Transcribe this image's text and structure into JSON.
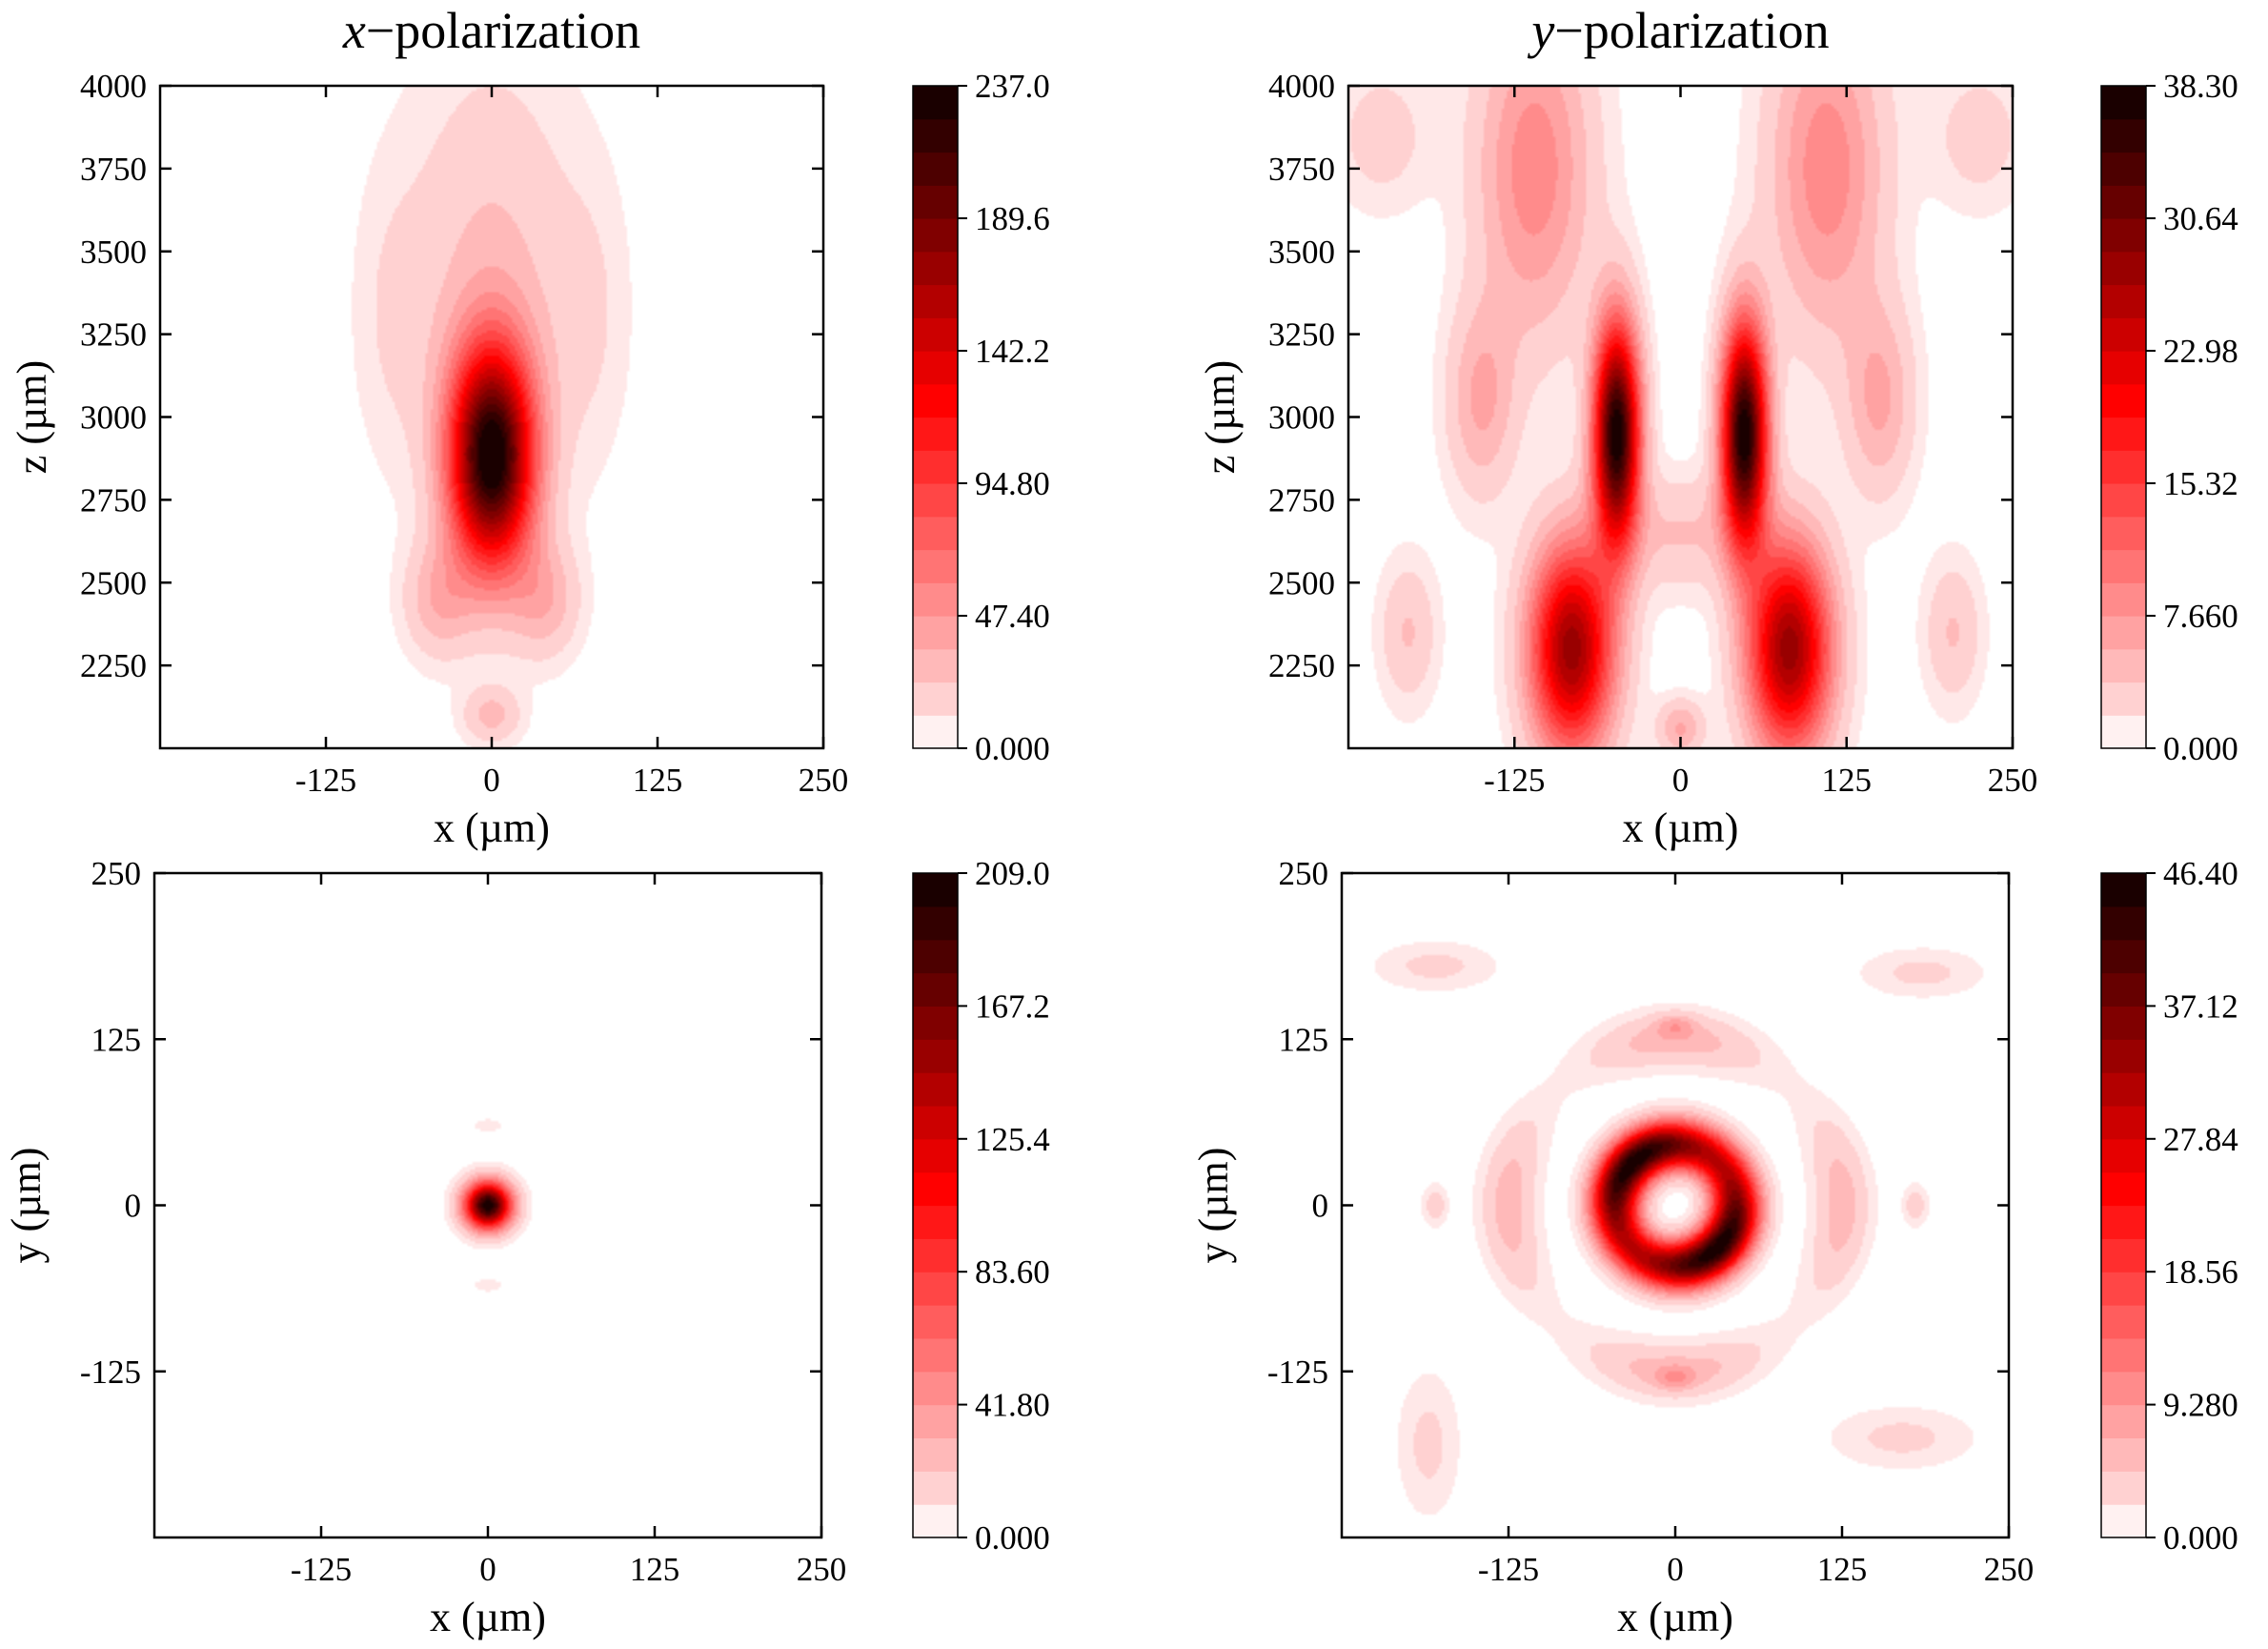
{
  "chart_data": [
    {
      "type": "heatmap",
      "id": "xpol_xz",
      "title_italic": "x",
      "title_rest": "−polarization",
      "xlabel": "x (µm)",
      "ylabel": "z (µm)",
      "xlim": [
        -250,
        250
      ],
      "ylim": [
        2000,
        4000
      ],
      "x_ticks": [
        -125,
        0,
        125,
        250
      ],
      "y_ticks": [
        2250,
        2500,
        2750,
        3000,
        3250,
        3500,
        3750,
        4000
      ],
      "colorbar": {
        "min": 0,
        "max": 237.0,
        "labels": [
          "0.000",
          "47.40",
          "94.80",
          "142.2",
          "189.6",
          "237.0"
        ]
      },
      "field": {
        "shape": "blobs",
        "components": [
          {
            "cx": 0,
            "cy": 2880,
            "sx": 22,
            "sy": 230,
            "amp": 237
          },
          {
            "cx": 0,
            "cy": 3450,
            "sx": 45,
            "sy": 450,
            "amp": 25
          },
          {
            "cx": -40,
            "cy": 2450,
            "sx": 18,
            "sy": 120,
            "amp": 32
          },
          {
            "cx": 40,
            "cy": 2450,
            "sx": 18,
            "sy": 120,
            "amp": 32
          },
          {
            "cx": 0,
            "cy": 2100,
            "sx": 15,
            "sy": 60,
            "amp": 28
          },
          {
            "cx": -75,
            "cy": 3300,
            "sx": 20,
            "sy": 300,
            "amp": 10
          },
          {
            "cx": 75,
            "cy": 3300,
            "sx": 20,
            "sy": 300,
            "amp": 10
          }
        ]
      }
    },
    {
      "type": "heatmap",
      "id": "ypol_xz",
      "title_italic": "y",
      "title_rest": "−polarization",
      "xlabel": "x (µm)",
      "ylabel": "z (µm)",
      "xlim": [
        -250,
        250
      ],
      "ylim": [
        2000,
        4000
      ],
      "x_ticks": [
        -125,
        0,
        125,
        250
      ],
      "y_ticks": [
        2250,
        2500,
        2750,
        3000,
        3250,
        3500,
        3750,
        4000
      ],
      "colorbar": {
        "min": 0,
        "max": 38.3,
        "labels": [
          "0.000",
          "7.660",
          "15.32",
          "22.98",
          "30.64",
          "38.30"
        ]
      },
      "field": {
        "shape": "blobs",
        "components": [
          {
            "cx": -48,
            "cy": 2950,
            "sx": 12,
            "sy": 230,
            "amp": 38.3
          },
          {
            "cx": 48,
            "cy": 2950,
            "sx": 12,
            "sy": 230,
            "amp": 38.3
          },
          {
            "cx": -82,
            "cy": 2300,
            "sx": 22,
            "sy": 220,
            "amp": 28
          },
          {
            "cx": 82,
            "cy": 2300,
            "sx": 22,
            "sy": 220,
            "amp": 28
          },
          {
            "cx": -110,
            "cy": 3750,
            "sx": 30,
            "sy": 350,
            "amp": 9
          },
          {
            "cx": 110,
            "cy": 3750,
            "sx": 30,
            "sy": 350,
            "amp": 9
          },
          {
            "cx": -150,
            "cy": 3050,
            "sx": 18,
            "sy": 200,
            "amp": 6
          },
          {
            "cx": 150,
            "cy": 3050,
            "sx": 18,
            "sy": 200,
            "amp": 6
          },
          {
            "cx": 0,
            "cy": 2650,
            "sx": 35,
            "sy": 120,
            "amp": 4
          },
          {
            "cx": 0,
            "cy": 2060,
            "sx": 12,
            "sy": 60,
            "amp": 6
          },
          {
            "cx": -205,
            "cy": 2350,
            "sx": 15,
            "sy": 150,
            "amp": 4
          },
          {
            "cx": 205,
            "cy": 2350,
            "sx": 15,
            "sy": 150,
            "amp": 4
          },
          {
            "cx": -225,
            "cy": 3850,
            "sx": 25,
            "sy": 150,
            "amp": 3
          },
          {
            "cx": 225,
            "cy": 3850,
            "sx": 25,
            "sy": 150,
            "amp": 3
          }
        ]
      }
    },
    {
      "type": "heatmap",
      "id": "xpol_xy",
      "title_italic": "",
      "title_rest": "",
      "xlabel": "x (µm)",
      "ylabel": "y (µm)",
      "xlim": [
        -250,
        250
      ],
      "ylim": [
        -250,
        250
      ],
      "x_ticks": [
        -125,
        0,
        125,
        250
      ],
      "y_ticks": [
        -125,
        0,
        125,
        250
      ],
      "colorbar": {
        "min": 0,
        "max": 209.0,
        "labels": [
          "0.000",
          "41.80",
          "83.60",
          "125.4",
          "167.2",
          "209.0"
        ]
      },
      "field": {
        "shape": "blobs",
        "components": [
          {
            "cx": 0,
            "cy": 0,
            "sx": 12,
            "sy": 12,
            "amp": 209
          },
          {
            "cx": 0,
            "cy": 60,
            "sx": 8,
            "sy": 4,
            "amp": 8
          },
          {
            "cx": 0,
            "cy": -60,
            "sx": 8,
            "sy": 4,
            "amp": 8
          }
        ]
      }
    },
    {
      "type": "heatmap",
      "id": "ypol_xy",
      "title_italic": "",
      "title_rest": "",
      "xlabel": "x (µm)",
      "ylabel": "y (µm)",
      "xlim": [
        -250,
        250
      ],
      "ylim": [
        -250,
        250
      ],
      "x_ticks": [
        -125,
        0,
        125,
        250
      ],
      "y_ticks": [
        -125,
        0,
        125,
        250
      ],
      "colorbar": {
        "min": 0,
        "max": 46.4,
        "labels": [
          "0.000",
          "9.280",
          "18.56",
          "27.84",
          "37.12",
          "46.40"
        ]
      },
      "field": {
        "shape": "ring",
        "ring": {
          "radius": 45,
          "width": 13,
          "amp": 46.4,
          "lobe_angle_deg": 45,
          "lobe_strength": 0.2
        },
        "outer_ring": {
          "radius": 125,
          "width": 14,
          "amp": 6
        },
        "components": [
          {
            "cx": 0,
            "cy": 135,
            "sx": 10,
            "sy": 6,
            "amp": 5
          },
          {
            "cx": 0,
            "cy": -130,
            "sx": 10,
            "sy": 6,
            "amp": 5
          },
          {
            "cx": -180,
            "cy": 0,
            "sx": 6,
            "sy": 10,
            "amp": 4
          },
          {
            "cx": 180,
            "cy": 0,
            "sx": 6,
            "sy": 10,
            "amp": 4
          },
          {
            "cx": -180,
            "cy": 180,
            "sx": 30,
            "sy": 12,
            "amp": 3
          },
          {
            "cx": 185,
            "cy": 175,
            "sx": 30,
            "sy": 12,
            "amp": 3
          },
          {
            "cx": -185,
            "cy": -180,
            "sx": 15,
            "sy": 35,
            "amp": 3
          },
          {
            "cx": 170,
            "cy": -175,
            "sx": 35,
            "sy": 15,
            "amp": 3
          }
        ]
      }
    }
  ]
}
